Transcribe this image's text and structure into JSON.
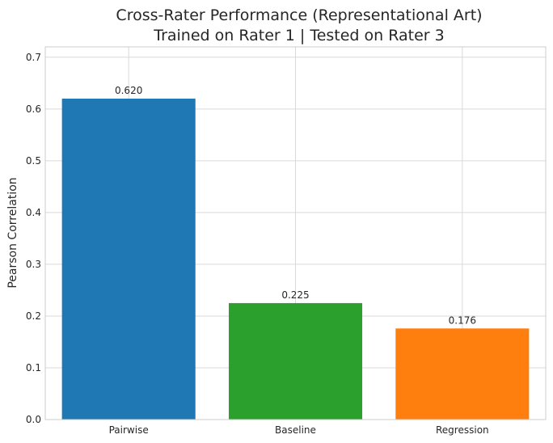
{
  "chart_data": {
    "type": "bar",
    "title": "Cross-Rater Performance (Representational Art)",
    "subtitle": "Trained on Rater 1 | Tested on Rater 3",
    "xlabel": "",
    "ylabel": "Pearson Correlation",
    "categories": [
      "Pairwise",
      "Baseline",
      "Regression"
    ],
    "values": [
      0.62,
      0.225,
      0.176
    ],
    "data_labels": [
      "0.620",
      "0.225",
      "0.176"
    ],
    "colors": [
      "#1f77b4",
      "#2ca02c",
      "#ff7f0e"
    ],
    "ylim": [
      0,
      0.72
    ],
    "yticks": [
      0.0,
      0.1,
      0.2,
      0.3,
      0.4,
      0.5,
      0.6,
      0.7
    ],
    "ytick_labels": [
      "0.0",
      "0.1",
      "0.2",
      "0.3",
      "0.4",
      "0.5",
      "0.6",
      "0.7"
    ],
    "grid": true,
    "legend": "none"
  }
}
